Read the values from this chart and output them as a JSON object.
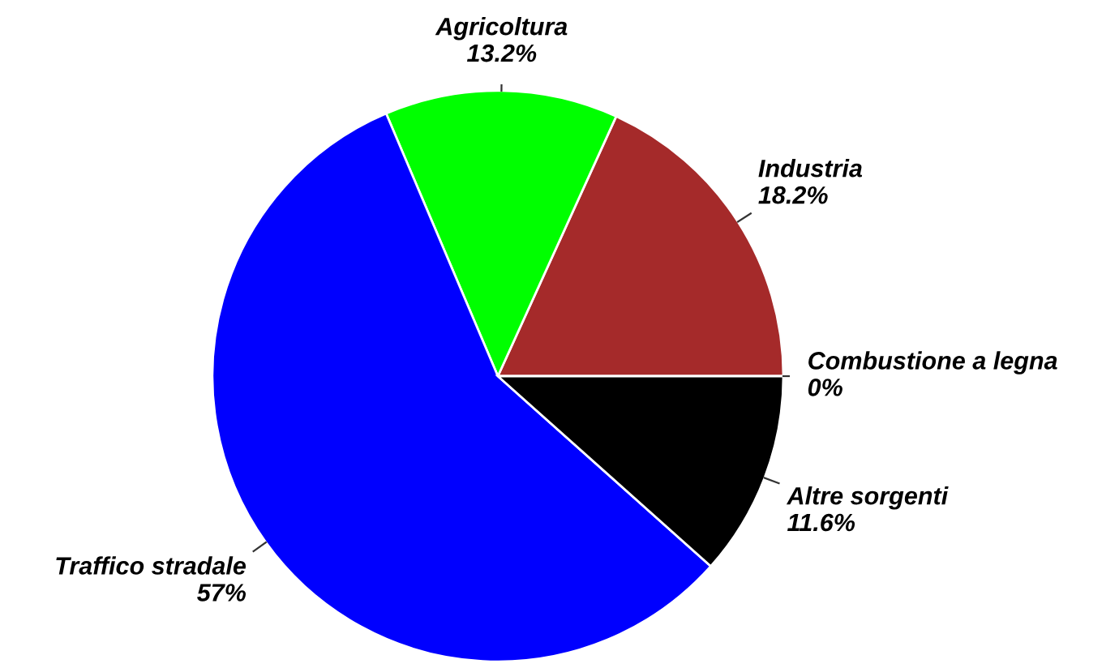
{
  "chart_data": {
    "type": "pie",
    "categories": [
      "Combustione a legna",
      "Industria",
      "Agricoltura",
      "Traffico stradale",
      "Altre sorgenti"
    ],
    "values": [
      0,
      18.2,
      13.2,
      57,
      11.6
    ],
    "value_labels": [
      "0%",
      "18.2%",
      "13.2%",
      "57%",
      "11.6%"
    ],
    "colors": [
      "#ffffff",
      "#a52a2a",
      "#00ff00",
      "#0000ff",
      "#000000"
    ]
  }
}
